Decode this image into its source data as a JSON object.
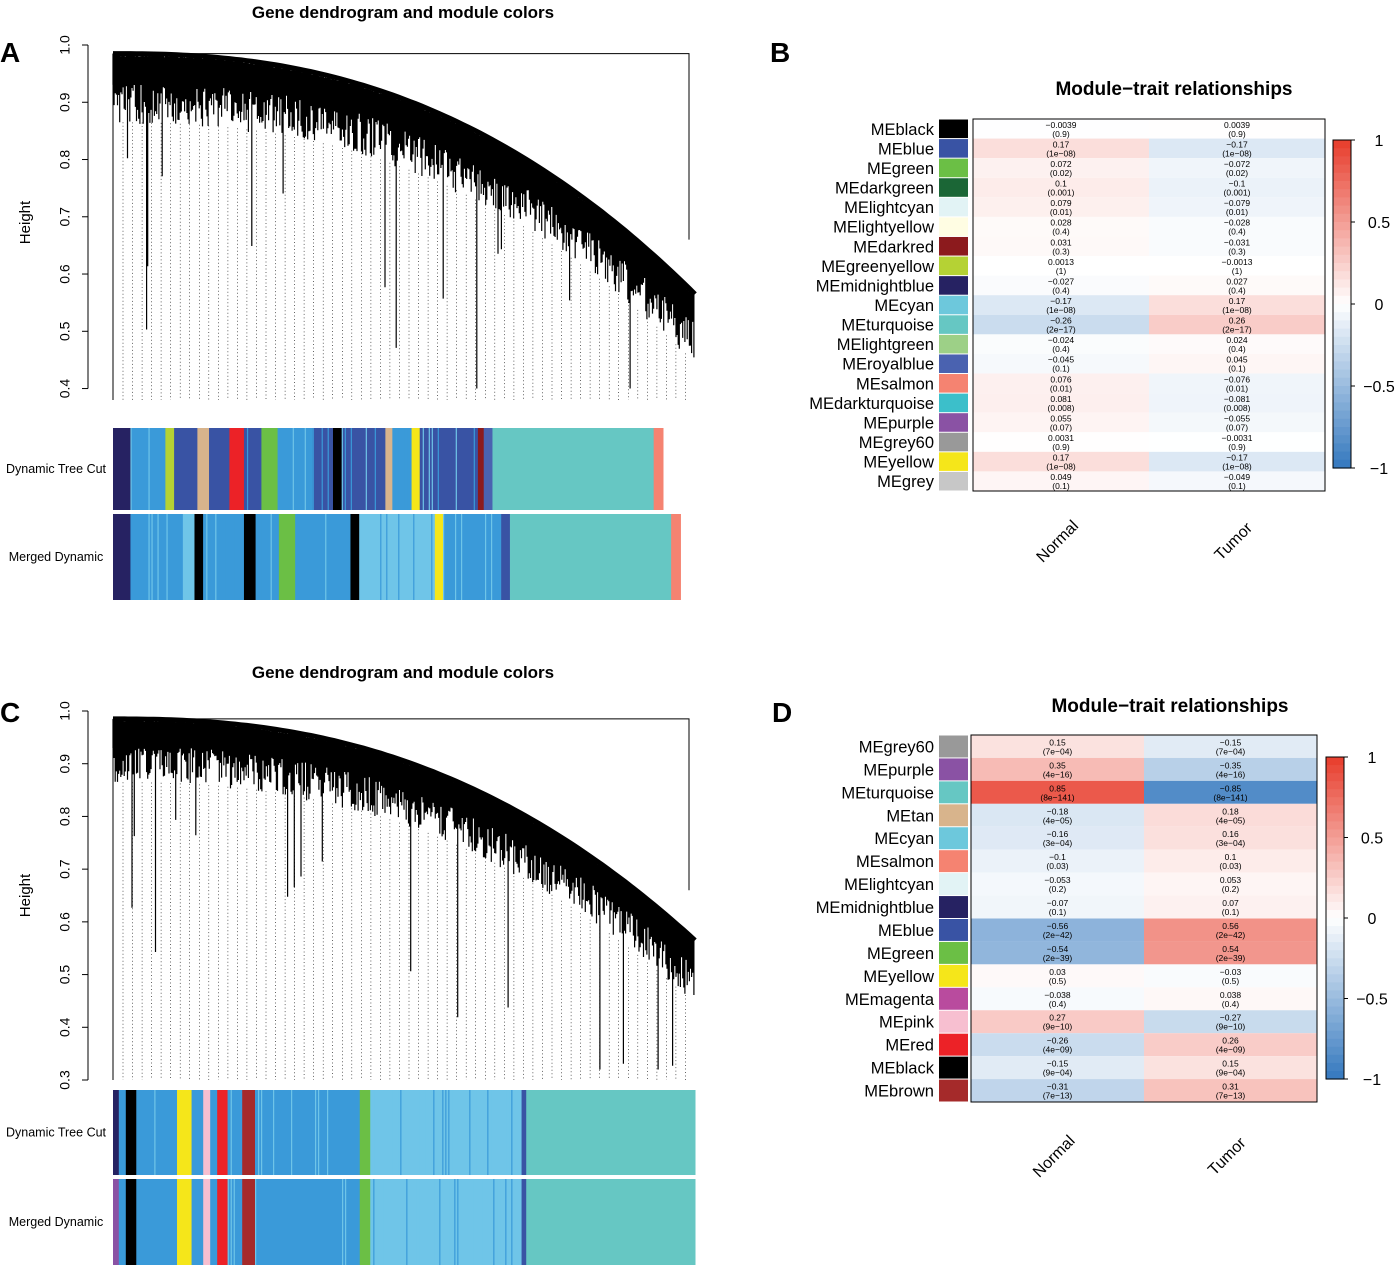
{
  "figure": {
    "panel_labels": [
      "A",
      "B",
      "C",
      "D"
    ],
    "colors": {
      "black": "#000000",
      "blue": "#3953a4",
      "green": "#6bbf45",
      "darkgreen": "#1b6636",
      "lightcyan": "#e2f3f5",
      "lightyellow": "#fffde3",
      "darkred": "#8c1a1d",
      "greenyellow": "#b5d234",
      "midnightblue": "#262262",
      "cyan": "#6dc8dc",
      "turquoise": "#66c7c3",
      "lightgreen": "#9dd087",
      "royalblue": "#4a62b0",
      "salmon": "#f58371",
      "darkturquoise": "#3cbfca",
      "purple": "#8a52a4",
      "grey60": "#999999",
      "yellow": "#f5e61a",
      "grey": "#c7c7c7",
      "tan": "#d8b48c",
      "magenta": "#b94b9e",
      "pink": "#f7bfd0",
      "red": "#ec2227",
      "brown": "#a52a2a",
      "skyblue": "#3a9ad9",
      "lightblue": "#6fc5e8"
    }
  },
  "chart_data": [
    {
      "type": "dendrogram",
      "panel": "A",
      "title": "Gene dendrogram and module colors",
      "ylabel": "Height",
      "ylim": [
        0.38,
        1.0
      ],
      "yticks": [
        0.4,
        0.5,
        0.6,
        0.7,
        0.8,
        0.9,
        1.0
      ],
      "tracks": [
        "Dynamic Tree Cut",
        "Merged Dynamic"
      ],
      "blocks_dynamic": [
        {
          "color": "midnightblue",
          "frac": 0.03
        },
        {
          "color": "skyblue",
          "frac": 0.06
        },
        {
          "color": "greenyellow",
          "frac": 0.015
        },
        {
          "color": "blue",
          "frac": 0.04
        },
        {
          "color": "tan",
          "frac": 0.02
        },
        {
          "color": "blue",
          "frac": 0.035
        },
        {
          "color": "red",
          "frac": 0.025
        },
        {
          "color": "blue",
          "frac": 0.03
        },
        {
          "color": "green",
          "frac": 0.028
        },
        {
          "color": "skyblue",
          "frac": 0.06
        },
        {
          "color": "blue",
          "frac": 0.035
        },
        {
          "color": "black",
          "frac": 0.015
        },
        {
          "color": "blue",
          "frac": 0.075
        },
        {
          "color": "tan",
          "frac": 0.012
        },
        {
          "color": "skyblue",
          "frac": 0.033
        },
        {
          "color": "yellow",
          "frac": 0.014
        },
        {
          "color": "blue",
          "frac": 0.1
        },
        {
          "color": "darkred",
          "frac": 0.01
        },
        {
          "color": "royalblue",
          "frac": 0.015
        },
        {
          "color": "turquoise",
          "frac": 0.277
        },
        {
          "color": "salmon",
          "frac": 0.016
        }
      ],
      "blocks_merged": [
        {
          "color": "midnightblue",
          "frac": 0.03
        },
        {
          "color": "skyblue",
          "frac": 0.09
        },
        {
          "color": "lightblue",
          "frac": 0.02
        },
        {
          "color": "black",
          "frac": 0.015
        },
        {
          "color": "skyblue",
          "frac": 0.07
        },
        {
          "color": "black",
          "frac": 0.02
        },
        {
          "color": "skyblue",
          "frac": 0.04
        },
        {
          "color": "green",
          "frac": 0.028
        },
        {
          "color": "skyblue",
          "frac": 0.095
        },
        {
          "color": "black",
          "frac": 0.015
        },
        {
          "color": "lightblue",
          "frac": 0.13
        },
        {
          "color": "yellow",
          "frac": 0.014
        },
        {
          "color": "skyblue",
          "frac": 0.1
        },
        {
          "color": "blue",
          "frac": 0.015
        },
        {
          "color": "turquoise",
          "frac": 0.277
        },
        {
          "color": "salmon",
          "frac": 0.016
        }
      ]
    },
    {
      "type": "heatmap",
      "panel": "B",
      "title": "Module−trait relationships",
      "columns": [
        "Normal",
        "Tumor"
      ],
      "legend_ticks": [
        "1",
        "0.5",
        "0",
        "−0.5",
        "−1"
      ],
      "rows": [
        {
          "name": "MEblack",
          "color": "black",
          "values": [
            -0.0039,
            0.0039
          ],
          "cells": [
            "−0.0039",
            "0.0039"
          ],
          "p": [
            "(0.9)",
            "(0.9)"
          ]
        },
        {
          "name": "MEblue",
          "color": "blue",
          "values": [
            0.17,
            -0.17
          ],
          "cells": [
            "0.17",
            "−0.17"
          ],
          "p": [
            "(1e−08)",
            "(1e−08)"
          ]
        },
        {
          "name": "MEgreen",
          "color": "green",
          "values": [
            0.072,
            -0.072
          ],
          "cells": [
            "0.072",
            "−0.072"
          ],
          "p": [
            "(0.02)",
            "(0.02)"
          ]
        },
        {
          "name": "MEdarkgreen",
          "color": "darkgreen",
          "values": [
            0.1,
            -0.1
          ],
          "cells": [
            "0.1",
            "−0.1"
          ],
          "p": [
            "(0.001)",
            "(0.001)"
          ]
        },
        {
          "name": "MElightcyan",
          "color": "lightcyan",
          "values": [
            0.079,
            -0.079
          ],
          "cells": [
            "0.079",
            "−0.079"
          ],
          "p": [
            "(0.01)",
            "(0.01)"
          ]
        },
        {
          "name": "MElightyellow",
          "color": "lightyellow",
          "values": [
            0.028,
            -0.028
          ],
          "cells": [
            "0.028",
            "−0.028"
          ],
          "p": [
            "(0.4)",
            "(0.4)"
          ]
        },
        {
          "name": "MEdarkred",
          "color": "darkred",
          "values": [
            0.031,
            -0.031
          ],
          "cells": [
            "0.031",
            "−0.031"
          ],
          "p": [
            "(0.3)",
            "(0.3)"
          ]
        },
        {
          "name": "MEgreenyellow",
          "color": "greenyellow",
          "values": [
            0.0013,
            -0.0013
          ],
          "cells": [
            "0.0013",
            "−0.0013"
          ],
          "p": [
            "(1)",
            "(1)"
          ]
        },
        {
          "name": "MEmidnightblue",
          "color": "midnightblue",
          "values": [
            -0.027,
            0.027
          ],
          "cells": [
            "−0.027",
            "0.027"
          ],
          "p": [
            "(0.4)",
            "(0.4)"
          ]
        },
        {
          "name": "MEcyan",
          "color": "cyan",
          "values": [
            -0.17,
            0.17
          ],
          "cells": [
            "−0.17",
            "0.17"
          ],
          "p": [
            "(1e−08)",
            "(1e−08)"
          ]
        },
        {
          "name": "MEturquoise",
          "color": "turquoise",
          "values": [
            -0.26,
            0.26
          ],
          "cells": [
            "−0.26",
            "0.26"
          ],
          "p": [
            "(2e−17)",
            "(2e−17)"
          ]
        },
        {
          "name": "MElightgreen",
          "color": "lightgreen",
          "values": [
            -0.024,
            0.024
          ],
          "cells": [
            "−0.024",
            "0.024"
          ],
          "p": [
            "(0.4)",
            "(0.4)"
          ]
        },
        {
          "name": "MEroyalblue",
          "color": "royalblue",
          "values": [
            -0.045,
            0.045
          ],
          "cells": [
            "−0.045",
            "0.045"
          ],
          "p": [
            "(0.1)",
            "(0.1)"
          ]
        },
        {
          "name": "MEsalmon",
          "color": "salmon",
          "values": [
            0.076,
            -0.076
          ],
          "cells": [
            "0.076",
            "−0.076"
          ],
          "p": [
            "(0.01)",
            "(0.01)"
          ]
        },
        {
          "name": "MEdarkturquoise",
          "color": "darkturquoise",
          "values": [
            0.081,
            -0.081
          ],
          "cells": [
            "0.081",
            "−0.081"
          ],
          "p": [
            "(0.008)",
            "(0.008)"
          ]
        },
        {
          "name": "MEpurple",
          "color": "purple",
          "values": [
            0.055,
            -0.055
          ],
          "cells": [
            "0.055",
            "−0.055"
          ],
          "p": [
            "(0.07)",
            "(0.07)"
          ]
        },
        {
          "name": "MEgrey60",
          "color": "grey60",
          "values": [
            0.0031,
            -0.0031
          ],
          "cells": [
            "0.0031",
            "−0.0031"
          ],
          "p": [
            "(0.9)",
            "(0.9)"
          ]
        },
        {
          "name": "MEyellow",
          "color": "yellow",
          "values": [
            0.17,
            -0.17
          ],
          "cells": [
            "0.17",
            "−0.17"
          ],
          "p": [
            "(1e−08)",
            "(1e−08)"
          ]
        },
        {
          "name": "MEgrey",
          "color": "grey",
          "values": [
            0.049,
            -0.049
          ],
          "cells": [
            "0.049",
            "−0.049"
          ],
          "p": [
            "(0.1)",
            "(0.1)"
          ]
        }
      ]
    },
    {
      "type": "dendrogram",
      "panel": "C",
      "title": "Gene dendrogram and module colors",
      "ylabel": "Height",
      "ylim": [
        0.3,
        1.0
      ],
      "yticks": [
        0.3,
        0.4,
        0.5,
        0.6,
        0.7,
        0.8,
        0.9,
        1.0
      ],
      "tracks": [
        "Dynamic Tree Cut",
        "Merged Dynamic"
      ],
      "blocks_dynamic": [
        {
          "color": "midnightblue",
          "frac": 0.01
        },
        {
          "color": "skyblue",
          "frac": 0.012
        },
        {
          "color": "black",
          "frac": 0.018
        },
        {
          "color": "skyblue",
          "frac": 0.07
        },
        {
          "color": "yellow",
          "frac": 0.025
        },
        {
          "color": "skyblue",
          "frac": 0.02
        },
        {
          "color": "pink",
          "frac": 0.012
        },
        {
          "color": "skyblue",
          "frac": 0.012
        },
        {
          "color": "red",
          "frac": 0.018
        },
        {
          "color": "skyblue",
          "frac": 0.025
        },
        {
          "color": "brown",
          "frac": 0.022
        },
        {
          "color": "skyblue",
          "frac": 0.18
        },
        {
          "color": "green",
          "frac": 0.018
        },
        {
          "color": "lightblue",
          "frac": 0.26
        },
        {
          "color": "blue",
          "frac": 0.008
        },
        {
          "color": "turquoise",
          "frac": 0.29
        }
      ],
      "blocks_merged": [
        {
          "color": "purple",
          "frac": 0.01
        },
        {
          "color": "skyblue",
          "frac": 0.012
        },
        {
          "color": "black",
          "frac": 0.018
        },
        {
          "color": "skyblue",
          "frac": 0.07
        },
        {
          "color": "yellow",
          "frac": 0.025
        },
        {
          "color": "skyblue",
          "frac": 0.02
        },
        {
          "color": "pink",
          "frac": 0.012
        },
        {
          "color": "skyblue",
          "frac": 0.012
        },
        {
          "color": "red",
          "frac": 0.018
        },
        {
          "color": "skyblue",
          "frac": 0.025
        },
        {
          "color": "brown",
          "frac": 0.022
        },
        {
          "color": "skyblue",
          "frac": 0.18
        },
        {
          "color": "green",
          "frac": 0.018
        },
        {
          "color": "lightblue",
          "frac": 0.26
        },
        {
          "color": "blue",
          "frac": 0.008
        },
        {
          "color": "turquoise",
          "frac": 0.29
        }
      ]
    },
    {
      "type": "heatmap",
      "panel": "D",
      "title": "Module−trait relationships",
      "columns": [
        "Normal",
        "Tumor"
      ],
      "legend_ticks": [
        "1",
        "0.5",
        "0",
        "−0.5",
        "−1"
      ],
      "rows": [
        {
          "name": "MEgrey60",
          "color": "grey60",
          "values": [
            0.15,
            -0.15
          ],
          "cells": [
            "0.15",
            "−0.15"
          ],
          "p": [
            "(7e−04)",
            "(7e−04)"
          ]
        },
        {
          "name": "MEpurple",
          "color": "purple",
          "values": [
            0.35,
            -0.35
          ],
          "cells": [
            "0.35",
            "−0.35"
          ],
          "p": [
            "(4e−16)",
            "(4e−16)"
          ]
        },
        {
          "name": "MEturquoise",
          "color": "turquoise",
          "values": [
            0.85,
            -0.85
          ],
          "cells": [
            "0.85",
            "−0.85"
          ],
          "p": [
            "(8e−141)",
            "(8e−141)"
          ]
        },
        {
          "name": "MEtan",
          "color": "tan",
          "values": [
            -0.18,
            0.18
          ],
          "cells": [
            "−0.18",
            "0.18"
          ],
          "p": [
            "(4e−05)",
            "(4e−05)"
          ]
        },
        {
          "name": "MEcyan",
          "color": "cyan",
          "values": [
            -0.16,
            0.16
          ],
          "cells": [
            "−0.16",
            "0.16"
          ],
          "p": [
            "(3e−04)",
            "(3e−04)"
          ]
        },
        {
          "name": "MEsalmon",
          "color": "salmon",
          "values": [
            -0.1,
            0.1
          ],
          "cells": [
            "−0.1",
            "0.1"
          ],
          "p": [
            "(0.03)",
            "(0.03)"
          ]
        },
        {
          "name": "MElightcyan",
          "color": "lightcyan",
          "values": [
            -0.053,
            0.053
          ],
          "cells": [
            "−0.053",
            "0.053"
          ],
          "p": [
            "(0.2)",
            "(0.2)"
          ]
        },
        {
          "name": "MEmidnightblue",
          "color": "midnightblue",
          "values": [
            -0.07,
            0.07
          ],
          "cells": [
            "−0.07",
            "0.07"
          ],
          "p": [
            "(0.1)",
            "(0.1)"
          ]
        },
        {
          "name": "MEblue",
          "color": "blue",
          "values": [
            -0.56,
            0.56
          ],
          "cells": [
            "−0.56",
            "0.56"
          ],
          "p": [
            "(2e−42)",
            "(2e−42)"
          ]
        },
        {
          "name": "MEgreen",
          "color": "green",
          "values": [
            -0.54,
            0.54
          ],
          "cells": [
            "−0.54",
            "0.54"
          ],
          "p": [
            "(2e−39)",
            "(2e−39)"
          ]
        },
        {
          "name": "MEyellow",
          "color": "yellow",
          "values": [
            0.03,
            -0.03
          ],
          "cells": [
            "0.03",
            "−0.03"
          ],
          "p": [
            "(0.5)",
            "(0.5)"
          ]
        },
        {
          "name": "MEmagenta",
          "color": "magenta",
          "values": [
            -0.038,
            0.038
          ],
          "cells": [
            "−0.038",
            "0.038"
          ],
          "p": [
            "(0.4)",
            "(0.4)"
          ]
        },
        {
          "name": "MEpink",
          "color": "pink",
          "values": [
            0.27,
            -0.27
          ],
          "cells": [
            "0.27",
            "−0.27"
          ],
          "p": [
            "(9e−10)",
            "(9e−10)"
          ]
        },
        {
          "name": "MEred",
          "color": "red",
          "values": [
            -0.26,
            0.26
          ],
          "cells": [
            "−0.26",
            "0.26"
          ],
          "p": [
            "(4e−09)",
            "(4e−09)"
          ]
        },
        {
          "name": "MEblack",
          "color": "black",
          "values": [
            -0.15,
            0.15
          ],
          "cells": [
            "−0.15",
            "0.15"
          ],
          "p": [
            "(9e−04)",
            "(9e−04)"
          ]
        },
        {
          "name": "MEbrown",
          "color": "brown",
          "values": [
            -0.31,
            0.31
          ],
          "cells": [
            "−0.31",
            "0.31"
          ],
          "p": [
            "(7e−13)",
            "(7e−13)"
          ]
        }
      ]
    }
  ]
}
